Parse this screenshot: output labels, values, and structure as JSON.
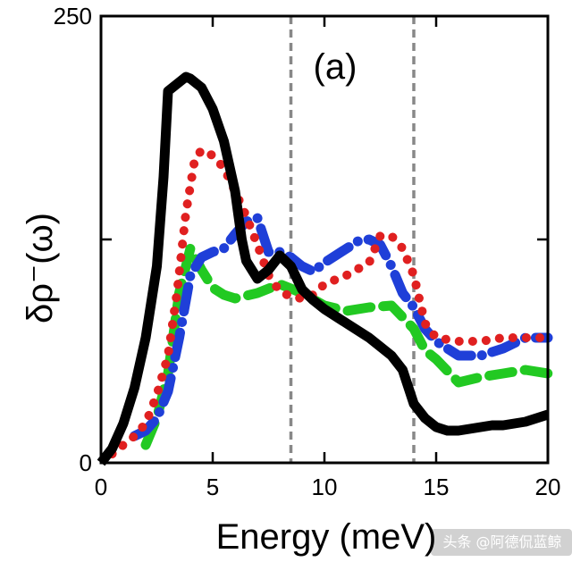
{
  "chart_data": {
    "type": "line",
    "title": "",
    "panel_label": "(a)",
    "xlabel": "Energy (meV)",
    "ylabel": "δρ⁻(ω)",
    "xlim": [
      0,
      20
    ],
    "ylim": [
      0,
      250
    ],
    "x_ticks": [
      "0",
      "5",
      "10",
      "15",
      "20"
    ],
    "y_tick_labels": [
      "0",
      "250"
    ],
    "y_minor_ticks": [
      125
    ],
    "reference_lines_x": [
      8.5,
      14.0
    ],
    "series": [
      {
        "color": "#000000",
        "style": "solid",
        "points": [
          [
            0,
            0
          ],
          [
            0.5,
            8
          ],
          [
            1,
            22
          ],
          [
            1.5,
            42
          ],
          [
            2,
            70
          ],
          [
            2.5,
            110
          ],
          [
            2.8,
            160
          ],
          [
            3,
            208
          ],
          [
            3.5,
            213
          ],
          [
            3.8,
            216
          ],
          [
            4,
            215
          ],
          [
            4.5,
            210
          ],
          [
            5,
            198
          ],
          [
            5.5,
            180
          ],
          [
            6,
            152
          ],
          [
            6.3,
            125
          ],
          [
            6.5,
            113
          ],
          [
            7,
            103
          ],
          [
            7.5,
            108
          ],
          [
            8,
            116
          ],
          [
            8.5,
            110
          ],
          [
            9,
            97
          ],
          [
            9.5,
            91
          ],
          [
            10,
            86
          ],
          [
            11,
            78
          ],
          [
            12,
            70
          ],
          [
            13,
            60
          ],
          [
            13.5,
            52
          ],
          [
            14,
            33
          ],
          [
            14.5,
            25
          ],
          [
            15,
            20
          ],
          [
            15.5,
            18
          ],
          [
            16,
            18
          ],
          [
            16.5,
            19
          ],
          [
            17,
            20
          ],
          [
            17.5,
            21
          ],
          [
            18,
            21
          ],
          [
            18.5,
            22
          ],
          [
            19,
            23
          ],
          [
            19.5,
            25
          ],
          [
            20,
            27
          ]
        ]
      },
      {
        "color": "#e02020",
        "style": "dotted",
        "points": [
          [
            0.5,
            5
          ],
          [
            1,
            10
          ],
          [
            1.5,
            15
          ],
          [
            2,
            22
          ],
          [
            2.5,
            38
          ],
          [
            3,
            60
          ],
          [
            3.4,
            95
          ],
          [
            3.8,
            140
          ],
          [
            4.2,
            170
          ],
          [
            4.5,
            175
          ],
          [
            5,
            172
          ],
          [
            5.5,
            165
          ],
          [
            6,
            152
          ],
          [
            6.5,
            138
          ],
          [
            7,
            122
          ],
          [
            7.5,
            105
          ],
          [
            8,
            96
          ],
          [
            8.5,
            93
          ],
          [
            9,
            92
          ],
          [
            9.5,
            94
          ],
          [
            10,
            100
          ],
          [
            11,
            105
          ],
          [
            12,
            112
          ],
          [
            12.5,
            127
          ],
          [
            13,
            127
          ],
          [
            13.5,
            120
          ],
          [
            14,
            105
          ],
          [
            14.5,
            78
          ],
          [
            15,
            70
          ],
          [
            16,
            68
          ],
          [
            17,
            68
          ],
          [
            18,
            70
          ],
          [
            19,
            70
          ],
          [
            20,
            70
          ]
        ]
      },
      {
        "color": "#1f3fd8",
        "style": "dashdot",
        "points": [
          [
            1.5,
            15
          ],
          [
            2,
            18
          ],
          [
            2.5,
            25
          ],
          [
            3,
            40
          ],
          [
            3.5,
            70
          ],
          [
            4,
            105
          ],
          [
            4.5,
            115
          ],
          [
            5,
            118
          ],
          [
            5.5,
            120
          ],
          [
            6,
            128
          ],
          [
            6.5,
            135
          ],
          [
            7,
            137
          ],
          [
            7.5,
            118
          ],
          [
            8,
            118
          ],
          [
            8.5,
            115
          ],
          [
            9,
            110
          ],
          [
            9.5,
            107
          ],
          [
            10,
            112
          ],
          [
            11,
            120
          ],
          [
            11.5,
            124
          ],
          [
            12,
            125
          ],
          [
            12.5,
            122
          ],
          [
            13,
            110
          ],
          [
            13.5,
            95
          ],
          [
            14,
            87
          ],
          [
            14.5,
            75
          ],
          [
            15,
            68
          ],
          [
            16,
            60
          ],
          [
            17,
            60
          ],
          [
            18,
            64
          ],
          [
            19,
            70
          ],
          [
            20,
            70
          ]
        ]
      },
      {
        "color": "#22c922",
        "style": "dashed",
        "points": [
          [
            2,
            10
          ],
          [
            2.5,
            25
          ],
          [
            3,
            50
          ],
          [
            3.5,
            95
          ],
          [
            4,
            120
          ],
          [
            4.5,
            108
          ],
          [
            5,
            98
          ],
          [
            5.5,
            94
          ],
          [
            6,
            92
          ],
          [
            7,
            95
          ],
          [
            8,
            100
          ],
          [
            9,
            95
          ],
          [
            10,
            88
          ],
          [
            11,
            85
          ],
          [
            12,
            87
          ],
          [
            13,
            88
          ],
          [
            14,
            75
          ],
          [
            14.5,
            63
          ],
          [
            15,
            58
          ],
          [
            16,
            45
          ],
          [
            17,
            48
          ],
          [
            18,
            50
          ],
          [
            19,
            52
          ],
          [
            20,
            50
          ]
        ]
      }
    ],
    "grid": false,
    "legend": "none"
  },
  "watermark": "头条 @阿德侃蓝鲸"
}
